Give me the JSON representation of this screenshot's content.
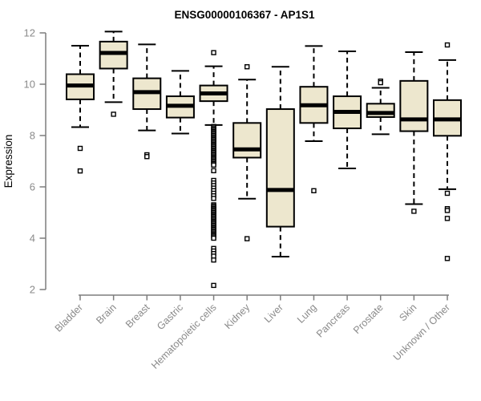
{
  "colors": {
    "background": "#ffffff",
    "box_fill": "#EDE7CE",
    "stroke": "#000000",
    "axis": "#7d7d7d",
    "tick_label": "#8a8a8a",
    "title": "#000000"
  },
  "chart_data": {
    "type": "boxplot",
    "title": "ENSG00000106367 - AP1S1",
    "xlabel": "",
    "ylabel": "Expression",
    "ylim": [
      2,
      12
    ],
    "yticks": [
      2,
      4,
      6,
      8,
      10,
      12
    ],
    "grid": false,
    "legend": "none",
    "categories": [
      "Bladder",
      "Brain",
      "Breast",
      "Gastric",
      "Hematopoietic cells",
      "Kidney",
      "Liver",
      "Lung",
      "Pancreas",
      "Prostate",
      "Skin",
      "Unknown / Other"
    ],
    "series": [
      {
        "name": "Bladder",
        "low": 8.33,
        "q1": 9.41,
        "median": 9.95,
        "q3": 10.39,
        "high": 11.5,
        "outliers": [
          7.5,
          6.62
        ]
      },
      {
        "name": "Brain",
        "low": 9.3,
        "q1": 10.61,
        "median": 11.22,
        "q3": 11.66,
        "high": 12.05,
        "outliers": [
          8.83
        ]
      },
      {
        "name": "Breast",
        "low": 8.2,
        "q1": 9.03,
        "median": 9.69,
        "q3": 10.23,
        "high": 11.55,
        "outliers": [
          7.25,
          7.18
        ]
      },
      {
        "name": "Gastric",
        "low": 8.08,
        "q1": 8.7,
        "median": 9.16,
        "q3": 9.53,
        "high": 10.52,
        "outliers": []
      },
      {
        "name": "Hematopoietic cells",
        "low": 8.41,
        "q1": 9.34,
        "median": 9.64,
        "q3": 9.95,
        "high": 10.7,
        "outliers": [
          11.23,
          8.35,
          8.3,
          8.25,
          8.2,
          8.15,
          8.1,
          8.05,
          8.0,
          7.95,
          7.9,
          7.85,
          7.8,
          7.75,
          7.7,
          7.65,
          7.6,
          7.55,
          7.5,
          7.45,
          7.4,
          7.35,
          7.3,
          7.25,
          7.2,
          7.15,
          7.1,
          7.05,
          7.0,
          6.95,
          6.9,
          6.85,
          6.63,
          6.25,
          6.15,
          6.05,
          5.95,
          5.85,
          5.75,
          5.65,
          5.55,
          5.3,
          5.25,
          5.2,
          5.15,
          5.1,
          5.05,
          5.0,
          4.95,
          4.9,
          4.85,
          4.8,
          4.75,
          4.7,
          4.65,
          4.6,
          4.55,
          4.5,
          4.45,
          4.4,
          4.35,
          4.3,
          4.25,
          4.2,
          4.15,
          4.1,
          4.05,
          4.0,
          3.6,
          3.5,
          3.4,
          3.3,
          3.15,
          2.16
        ]
      },
      {
        "name": "Kidney",
        "low": 5.54,
        "q1": 7.14,
        "median": 7.46,
        "q3": 8.49,
        "high": 10.18,
        "outliers": [
          10.68,
          3.98
        ]
      },
      {
        "name": "Liver",
        "low": 3.28,
        "q1": 4.45,
        "median": 5.88,
        "q3": 9.03,
        "high": 10.68,
        "outliers": []
      },
      {
        "name": "Lung",
        "low": 7.78,
        "q1": 8.49,
        "median": 9.18,
        "q3": 9.9,
        "high": 11.49,
        "outliers": [
          5.85
        ]
      },
      {
        "name": "Pancreas",
        "low": 6.72,
        "q1": 8.28,
        "median": 8.92,
        "q3": 9.53,
        "high": 11.28,
        "outliers": []
      },
      {
        "name": "Prostate",
        "low": 8.05,
        "q1": 8.72,
        "median": 8.88,
        "q3": 9.24,
        "high": 9.86,
        "outliers": [
          10.12,
          10.06
        ]
      },
      {
        "name": "Skin",
        "low": 5.33,
        "q1": 8.17,
        "median": 8.63,
        "q3": 10.13,
        "high": 11.25,
        "outliers": [
          5.05
        ]
      },
      {
        "name": "Unknown / Other",
        "low": 5.91,
        "q1": 7.99,
        "median": 8.63,
        "q3": 9.38,
        "high": 10.94,
        "outliers": [
          11.53,
          5.75,
          5.15,
          5.08,
          4.77,
          3.21
        ]
      }
    ]
  }
}
